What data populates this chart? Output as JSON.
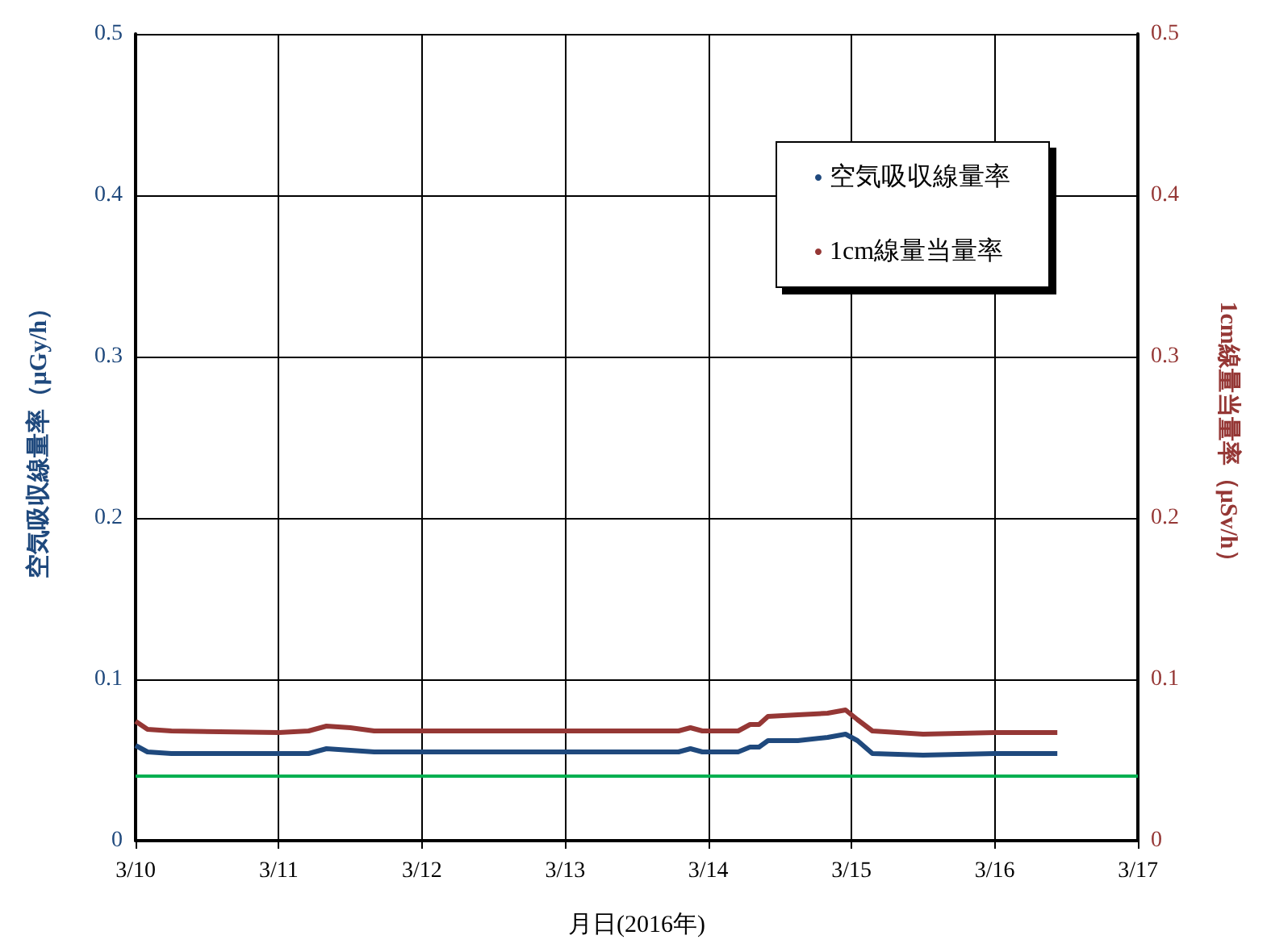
{
  "chart_data": {
    "type": "line",
    "xlabel": "月日(2016年)",
    "ylabel": "空気吸収線量率（μGy/h）",
    "y2label": "1cm線量当量率（μSv/h）",
    "xlim": [
      "2016-03-10",
      "2016-03-17"
    ],
    "xticks": [
      {
        "value": "2016-03-10",
        "label": "3/10"
      },
      {
        "value": "2016-03-11",
        "label": "3/11"
      },
      {
        "value": "2016-03-12",
        "label": "3/12"
      },
      {
        "value": "2016-03-13",
        "label": "3/13"
      },
      {
        "value": "2016-03-14",
        "label": "3/14"
      },
      {
        "value": "2016-03-15",
        "label": "3/15"
      },
      {
        "value": "2016-03-16",
        "label": "3/16"
      },
      {
        "value": "2016-03-17",
        "label": "3/17"
      }
    ],
    "ylim": [
      0,
      0.5
    ],
    "yticks": [
      0,
      0.1,
      0.2,
      0.3,
      0.4,
      0.5
    ],
    "y2lim": [
      0,
      0.5
    ],
    "y2ticks": [
      0,
      0.1,
      0.2,
      0.3,
      0.4,
      0.5
    ],
    "grid": true,
    "legend": "top right",
    "marker": "none",
    "line_style": "solid",
    "ref_lines": [
      {
        "axis": "y",
        "value": 0.04,
        "color": "#00b050"
      }
    ],
    "series": [
      {
        "name": "空気吸収線量率",
        "color": "#1f497d",
        "x": [
          "2016-03-10T00:00",
          "2016-03-10T02:00",
          "2016-03-10T06:00",
          "2016-03-11T00:00",
          "2016-03-11T05:00",
          "2016-03-11T08:00",
          "2016-03-11T12:00",
          "2016-03-11T16:00",
          "2016-03-12T00:00",
          "2016-03-12T12:00",
          "2016-03-12T22:00",
          "2016-03-13T00:00",
          "2016-03-13T12:00",
          "2016-03-13T19:00",
          "2016-03-13T21:00",
          "2016-03-13T23:00",
          "2016-03-14T05:00",
          "2016-03-14T07:00",
          "2016-03-14T08:30",
          "2016-03-14T10:00",
          "2016-03-14T15:00",
          "2016-03-14T20:00",
          "2016-03-14T23:00",
          "2016-03-15T01:00",
          "2016-03-15T03:30",
          "2016-03-15T12:00",
          "2016-03-16T00:00",
          "2016-03-16T10:30"
        ],
        "values": [
          0.059,
          0.055,
          0.054,
          0.054,
          0.054,
          0.057,
          0.056,
          0.055,
          0.055,
          0.055,
          0.055,
          0.055,
          0.055,
          0.055,
          0.057,
          0.055,
          0.055,
          0.058,
          0.058,
          0.062,
          0.062,
          0.064,
          0.066,
          0.062,
          0.054,
          0.053,
          0.054,
          0.054
        ]
      },
      {
        "name": "1cm線量当量率",
        "color": "#953735",
        "axis": "y2",
        "x": [
          "2016-03-10T00:00",
          "2016-03-10T02:00",
          "2016-03-10T06:00",
          "2016-03-11T00:00",
          "2016-03-11T05:00",
          "2016-03-11T08:00",
          "2016-03-11T12:00",
          "2016-03-11T16:00",
          "2016-03-12T00:00",
          "2016-03-12T12:00",
          "2016-03-12T22:00",
          "2016-03-13T00:00",
          "2016-03-13T12:00",
          "2016-03-13T19:00",
          "2016-03-13T21:00",
          "2016-03-13T23:00",
          "2016-03-14T05:00",
          "2016-03-14T07:00",
          "2016-03-14T08:30",
          "2016-03-14T10:00",
          "2016-03-14T15:00",
          "2016-03-14T20:00",
          "2016-03-14T23:00",
          "2016-03-15T01:00",
          "2016-03-15T03:30",
          "2016-03-15T12:00",
          "2016-03-16T00:00",
          "2016-03-16T10:30"
        ],
        "values": [
          0.074,
          0.069,
          0.068,
          0.067,
          0.068,
          0.071,
          0.07,
          0.068,
          0.068,
          0.068,
          0.068,
          0.068,
          0.068,
          0.068,
          0.07,
          0.068,
          0.068,
          0.072,
          0.072,
          0.077,
          0.078,
          0.079,
          0.081,
          0.075,
          0.068,
          0.066,
          0.067,
          0.067
        ]
      }
    ]
  }
}
